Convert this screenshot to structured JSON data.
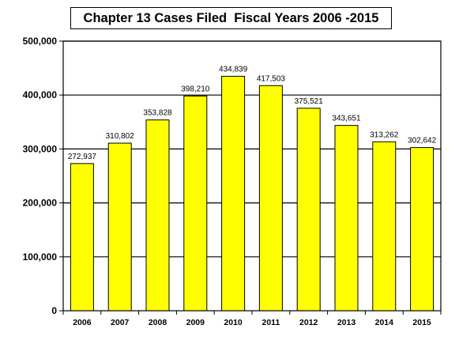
{
  "chart_data": {
    "type": "bar",
    "title": "Chapter 13 Cases Filed  Fiscal Years 2006 -2015",
    "categories": [
      "2006",
      "2007",
      "2008",
      "2009",
      "2010",
      "2011",
      "2012",
      "2013",
      "2014",
      "2015"
    ],
    "values": [
      272937,
      310802,
      353828,
      398210,
      434839,
      417503,
      375521,
      343651,
      313262,
      302642
    ],
    "data_labels": [
      "272,937",
      "310,802",
      "353,828",
      "398,210",
      "434,839",
      "417,503",
      "375,521",
      "343,651",
      "313,262",
      "302,642"
    ],
    "yticks": [
      0,
      100000,
      200000,
      300000,
      400000,
      500000
    ],
    "ytick_labels": [
      "0",
      "100,000",
      "200,000",
      "300,000",
      "400,000",
      "500,000"
    ],
    "ylim": [
      0,
      500000
    ],
    "xlabel": "",
    "ylabel": "",
    "grid": true,
    "legend": "none",
    "bar_color": "#ffff00",
    "bar_stroke": "#000000"
  }
}
